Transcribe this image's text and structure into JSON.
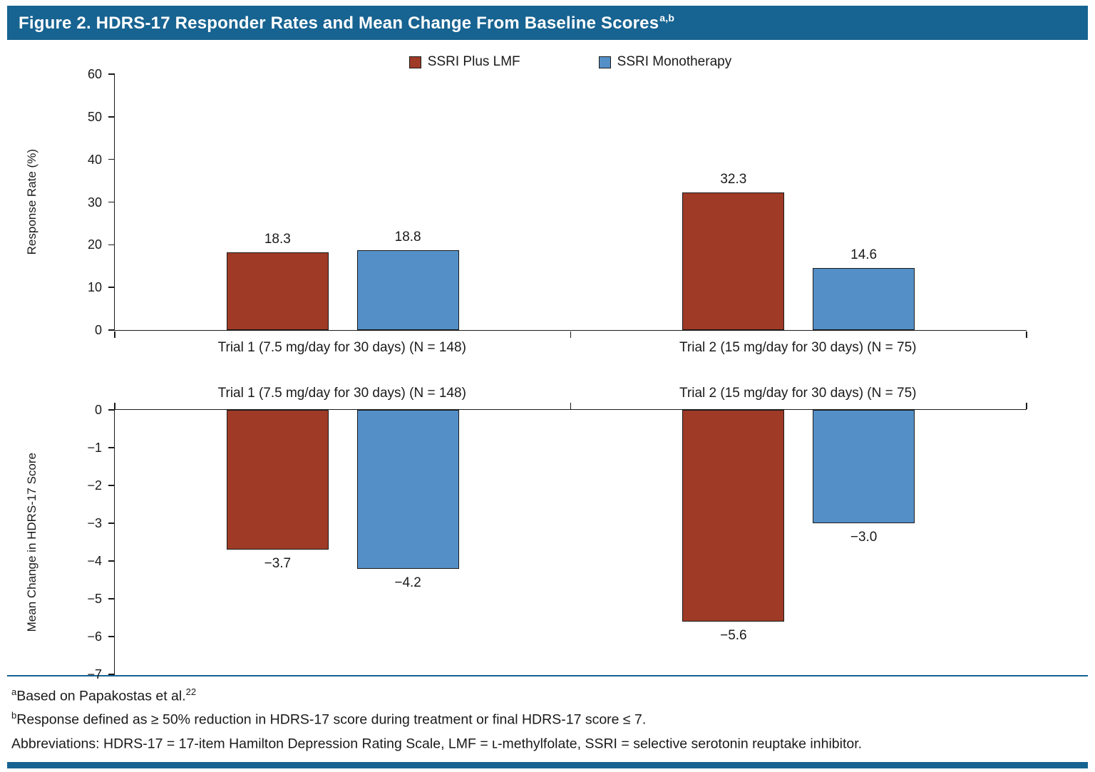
{
  "figure": {
    "title": "Figure 2. HDRS-17 Responder Rates and Mean Change From Baseline Scores",
    "title_superscript": "a,b"
  },
  "colors": {
    "accent_bar": "#176391",
    "ssri_plus_lmf": "#9e3a26",
    "ssri_monotherapy": "#548fc7",
    "bar_border": "#1a1a1a"
  },
  "legend": {
    "items": [
      {
        "label": "SSRI Plus LMF",
        "color": "#9e3a26"
      },
      {
        "label": "SSRI Monotherapy",
        "color": "#548fc7"
      }
    ]
  },
  "chart_data": [
    {
      "type": "bar",
      "title": "",
      "xlabel": "",
      "ylabel": "Response Rate (%)",
      "ylim": [
        0,
        60
      ],
      "yticks": [
        60,
        50,
        40,
        30,
        20,
        10,
        0
      ],
      "grid": false,
      "legend_position": "top-center",
      "categories": [
        "Trial 1 (7.5 mg/day for 30 days) (N = 148)",
        "Trial 2 (15 mg/day for 30 days) (N = 75)"
      ],
      "series": [
        {
          "name": "SSRI Plus LMF",
          "color": "#9e3a26",
          "values": [
            18.3,
            32.3
          ],
          "labels": [
            "18.3",
            "32.3"
          ]
        },
        {
          "name": "SSRI Monotherapy",
          "color": "#548fc7",
          "values": [
            18.8,
            14.6
          ],
          "labels": [
            "18.8",
            "14.6"
          ]
        }
      ]
    },
    {
      "type": "bar",
      "title": "",
      "xlabel": "",
      "ylabel": "Mean Change in HDRS-17 Score",
      "ylim": [
        -7,
        0
      ],
      "yticks": [
        0,
        -1,
        -2,
        -3,
        -4,
        -5,
        -6,
        -7
      ],
      "grid": false,
      "legend_position": "none",
      "categories": [
        "Trial 1 (7.5 mg/day for 30 days) (N = 148)",
        "Trial 2 (15 mg/day for 30 days) (N = 75)"
      ],
      "series": [
        {
          "name": "SSRI Plus LMF",
          "color": "#9e3a26",
          "values": [
            -3.7,
            -5.6
          ],
          "labels": [
            "−3.7",
            "−5.6"
          ]
        },
        {
          "name": "SSRI Monotherapy",
          "color": "#548fc7",
          "values": [
            -4.2,
            -3.0
          ],
          "labels": [
            "−4.2",
            "−3.0"
          ]
        }
      ]
    }
  ],
  "footnotes": [
    {
      "sup": "a",
      "text": "Based on Papakostas et al.",
      "sup_after": "22"
    },
    {
      "sup": "b",
      "text": "Response defined as ≥ 50% reduction in HDRS-17 score during treatment or final HDRS-17 score ≤ 7.",
      "sup_after": ""
    },
    {
      "sup": "",
      "text": "Abbreviations: HDRS-17 = 17-item Hamilton Depression Rating Scale, LMF = ʟ-methylfolate, SSRI = selective serotonin reuptake inhibitor.",
      "sup_after": ""
    }
  ]
}
